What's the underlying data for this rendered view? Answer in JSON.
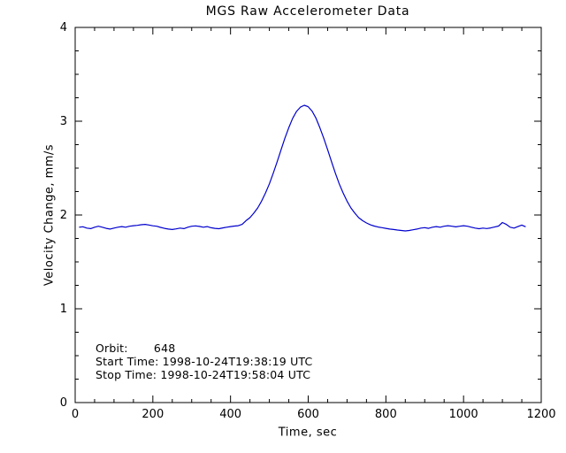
{
  "chart_data": {
    "type": "line",
    "title": "MGS Raw Accelerometer Data",
    "xlabel": "Time, sec",
    "ylabel": "Velocity Change, mm/s",
    "xlim": [
      0,
      1200
    ],
    "ylim": [
      0,
      4
    ],
    "xticks": [
      0,
      200,
      400,
      600,
      800,
      1000,
      1200
    ],
    "yticks": [
      0,
      1,
      2,
      3,
      4
    ],
    "x_minor_step": 50,
    "y_minor_step": 0.25,
    "grid": false,
    "legend": null,
    "line_color": "#0000cd",
    "axis_color": "#000000",
    "background_color": "#ffffff",
    "annotations": [
      "Orbit:       648",
      "Start Time: 1998-10-24T19:38:19 UTC",
      "Stop Time: 1998-10-24T19:58:04 UTC"
    ],
    "series": [
      {
        "name": "velocity_change",
        "x": [
          10,
          20,
          30,
          40,
          50,
          60,
          70,
          80,
          90,
          100,
          110,
          120,
          130,
          140,
          150,
          160,
          170,
          180,
          190,
          200,
          210,
          220,
          230,
          240,
          250,
          260,
          270,
          280,
          290,
          300,
          310,
          320,
          330,
          340,
          350,
          360,
          370,
          380,
          390,
          400,
          410,
          420,
          430,
          440,
          450,
          460,
          470,
          480,
          490,
          500,
          510,
          520,
          530,
          540,
          550,
          560,
          570,
          580,
          590,
          600,
          610,
          620,
          630,
          640,
          650,
          660,
          670,
          680,
          690,
          700,
          710,
          720,
          730,
          740,
          750,
          760,
          770,
          780,
          790,
          800,
          810,
          820,
          830,
          840,
          850,
          860,
          870,
          880,
          890,
          900,
          910,
          920,
          930,
          940,
          950,
          960,
          970,
          980,
          990,
          1000,
          1010,
          1020,
          1030,
          1040,
          1050,
          1060,
          1070,
          1080,
          1090,
          1100,
          1110,
          1120,
          1130,
          1140,
          1150,
          1160
        ],
        "y": [
          1.87,
          1.875,
          1.86,
          1.855,
          1.87,
          1.88,
          1.87,
          1.858,
          1.85,
          1.86,
          1.87,
          1.876,
          1.87,
          1.88,
          1.886,
          1.89,
          1.896,
          1.9,
          1.893,
          1.885,
          1.88,
          1.868,
          1.858,
          1.85,
          1.845,
          1.852,
          1.86,
          1.855,
          1.87,
          1.88,
          1.884,
          1.878,
          1.87,
          1.876,
          1.864,
          1.858,
          1.854,
          1.862,
          1.87,
          1.876,
          1.882,
          1.886,
          1.9,
          1.94,
          1.972,
          2.02,
          2.075,
          2.148,
          2.235,
          2.332,
          2.446,
          2.568,
          2.695,
          2.818,
          2.93,
          3.03,
          3.105,
          3.15,
          3.17,
          3.155,
          3.108,
          3.032,
          2.93,
          2.818,
          2.695,
          2.568,
          2.446,
          2.332,
          2.235,
          2.148,
          2.075,
          2.02,
          1.972,
          1.94,
          1.915,
          1.895,
          1.882,
          1.872,
          1.865,
          1.858,
          1.85,
          1.845,
          1.84,
          1.835,
          1.83,
          1.835,
          1.842,
          1.85,
          1.86,
          1.865,
          1.858,
          1.87,
          1.876,
          1.87,
          1.88,
          1.886,
          1.88,
          1.874,
          1.88,
          1.886,
          1.88,
          1.87,
          1.86,
          1.854,
          1.86,
          1.856,
          1.862,
          1.872,
          1.882,
          1.92,
          1.9,
          1.87,
          1.86,
          1.876,
          1.892,
          1.875
        ]
      }
    ]
  }
}
